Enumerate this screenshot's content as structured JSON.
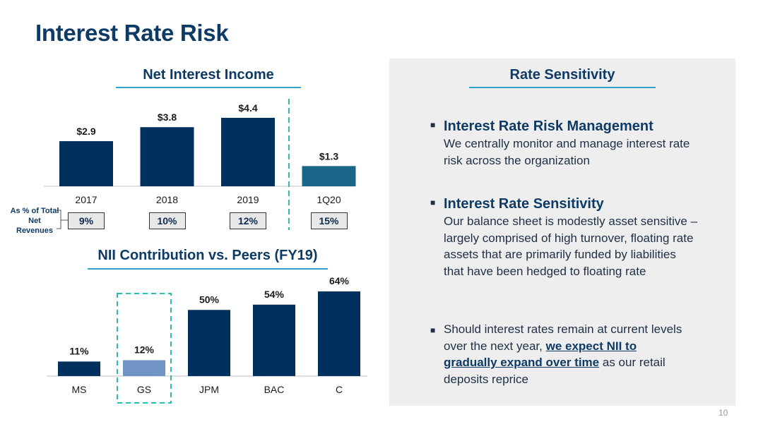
{
  "page": {
    "title": "Interest Rate Risk",
    "page_number": "10"
  },
  "colors": {
    "navy": "#00305e",
    "highlight_bar": "#7095c4",
    "q_bar": "#1a6688",
    "accent_teal": "#2fa3c6",
    "dashed_teal": "#2cbbb0"
  },
  "nii_section": {
    "title": "Net Interest Income",
    "ratio_label": "As % of Total Net Revenues"
  },
  "peers_section": {
    "title": "NII Contribution vs. Peers (FY19)"
  },
  "rate_section": {
    "title": "Rate Sensitivity",
    "bullets": [
      {
        "heading": "Interest Rate Risk Management",
        "text": "We centrally monitor and manage interest rate risk across the organization"
      },
      {
        "heading": "Interest Rate Sensitivity",
        "text": "Our balance sheet is modestly asset sensitive – largely comprised of high turnover, floating rate assets that are primarily funded by liabilities that have been hedged to floating rate"
      },
      {
        "text_before": "Should interest rates remain at current levels over the next year, ",
        "emphasis": "we expect NII to gradually expand over time",
        "text_after": " as our retail deposits reprice"
      }
    ]
  },
  "chart_data": [
    {
      "type": "bar",
      "title": "Net Interest Income",
      "categories": [
        "2017",
        "2018",
        "2019",
        "1Q20"
      ],
      "values": [
        2.9,
        3.8,
        4.4,
        1.3
      ],
      "labels": [
        "$2.9",
        "$3.8",
        "$4.4",
        "$1.3"
      ],
      "ratios": [
        "9%",
        "10%",
        "12%",
        "15%"
      ],
      "ylim": [
        0,
        4.4
      ],
      "grid": false,
      "annotations": [
        "As % of Total Net Revenues"
      ]
    },
    {
      "type": "bar",
      "title": "NII Contribution vs. Peers (FY19)",
      "categories": [
        "MS",
        "GS",
        "JPM",
        "BAC",
        "C"
      ],
      "values": [
        11,
        12,
        50,
        54,
        64
      ],
      "labels": [
        "11%",
        "12%",
        "50%",
        "54%",
        "64%"
      ],
      "highlight": "GS",
      "ylim": [
        0,
        64
      ],
      "grid": false
    }
  ]
}
